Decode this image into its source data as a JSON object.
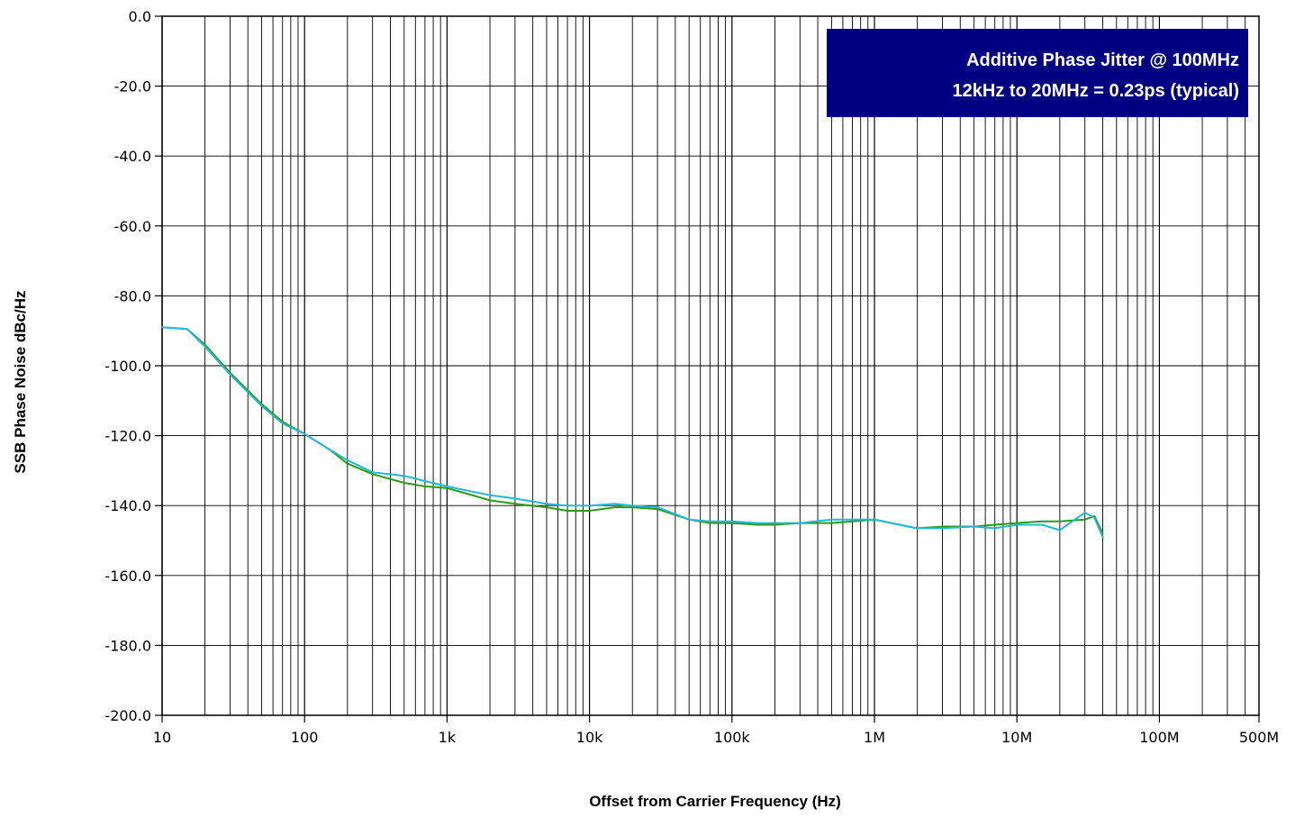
{
  "chart_data": {
    "type": "line",
    "title": "",
    "xlabel": "Offset from Carrier Frequency (Hz)",
    "ylabel": "SSB Phase Noise   dBc/Hz",
    "x_scale": "log",
    "xlim": [
      10,
      500000000
    ],
    "ylim": [
      -200,
      0
    ],
    "grid": true,
    "x_ticks": [
      10,
      100,
      1000,
      10000,
      100000,
      1000000,
      10000000,
      100000000,
      500000000
    ],
    "x_tick_labels": [
      "10",
      "100",
      "1k",
      "10k",
      "100k",
      "1M",
      "10M",
      "100M",
      "500M"
    ],
    "y_ticks": [
      0,
      -20,
      -40,
      -60,
      -80,
      -100,
      -120,
      -140,
      -160,
      -180,
      -200
    ],
    "y_tick_labels": [
      "0.0",
      "-20.0",
      "-40.0",
      "-60.0",
      "-80.0",
      "-100.0",
      "-120.0",
      "-140.0",
      "-160.0",
      "-180.0",
      "-200.0"
    ],
    "annotation": {
      "lines": [
        "Additive Phase Jitter @ 100MHz",
        "12kHz to 20MHz = 0.23ps (typical)"
      ],
      "background": "#000080",
      "placement": "top-right"
    },
    "series": [
      {
        "color": "#2e9a1c",
        "x": [
          10,
          15,
          20,
          30,
          50,
          70,
          100,
          150,
          200,
          300,
          500,
          700,
          1000,
          1500,
          2000,
          3000,
          5000,
          7000,
          10000,
          15000,
          20000,
          30000,
          50000,
          70000,
          100000,
          150000,
          200000,
          300000,
          500000,
          700000,
          1000000,
          1500000,
          2000000,
          3000000,
          5000000,
          7000000,
          10000000,
          15000000,
          20000000,
          30000000,
          35000000,
          40000000
        ],
        "y": [
          -89,
          -89.5,
          -94,
          -102,
          -111,
          -116,
          -119.5,
          -124,
          -128,
          -131,
          -133.5,
          -134.5,
          -135,
          -137,
          -138.5,
          -139.5,
          -140.5,
          -141.5,
          -141.5,
          -140.5,
          -140.5,
          -141,
          -144,
          -145,
          -145,
          -145.5,
          -145.5,
          -145,
          -145,
          -144.5,
          -144,
          -145.5,
          -146.5,
          -146,
          -146,
          -145.5,
          -145,
          -144.5,
          -144.5,
          -144,
          -143,
          -148
        ]
      },
      {
        "color": "#22b8d6",
        "x": [
          10,
          15,
          20,
          30,
          50,
          70,
          100,
          150,
          200,
          300,
          500,
          700,
          1000,
          1500,
          2000,
          3000,
          5000,
          7000,
          10000,
          15000,
          20000,
          30000,
          50000,
          70000,
          100000,
          150000,
          200000,
          300000,
          500000,
          700000,
          1000000,
          1500000,
          2000000,
          3000000,
          5000000,
          7000000,
          10000000,
          15000000,
          20000000,
          30000000,
          35000000,
          40000000
        ],
        "y": [
          -89,
          -89.5,
          -94.5,
          -102.5,
          -111.5,
          -116.5,
          -119.5,
          -124,
          -127,
          -130.5,
          -131.5,
          -133,
          -134.5,
          -136,
          -137,
          -138,
          -139.5,
          -140,
          -140,
          -139.5,
          -140,
          -140.5,
          -144,
          -144.5,
          -144.5,
          -145,
          -145,
          -145,
          -144,
          -144,
          -144,
          -145.5,
          -146.5,
          -146.5,
          -146,
          -146.5,
          -145.5,
          -145.5,
          -147,
          -142,
          -143.5,
          -149
        ]
      }
    ]
  }
}
